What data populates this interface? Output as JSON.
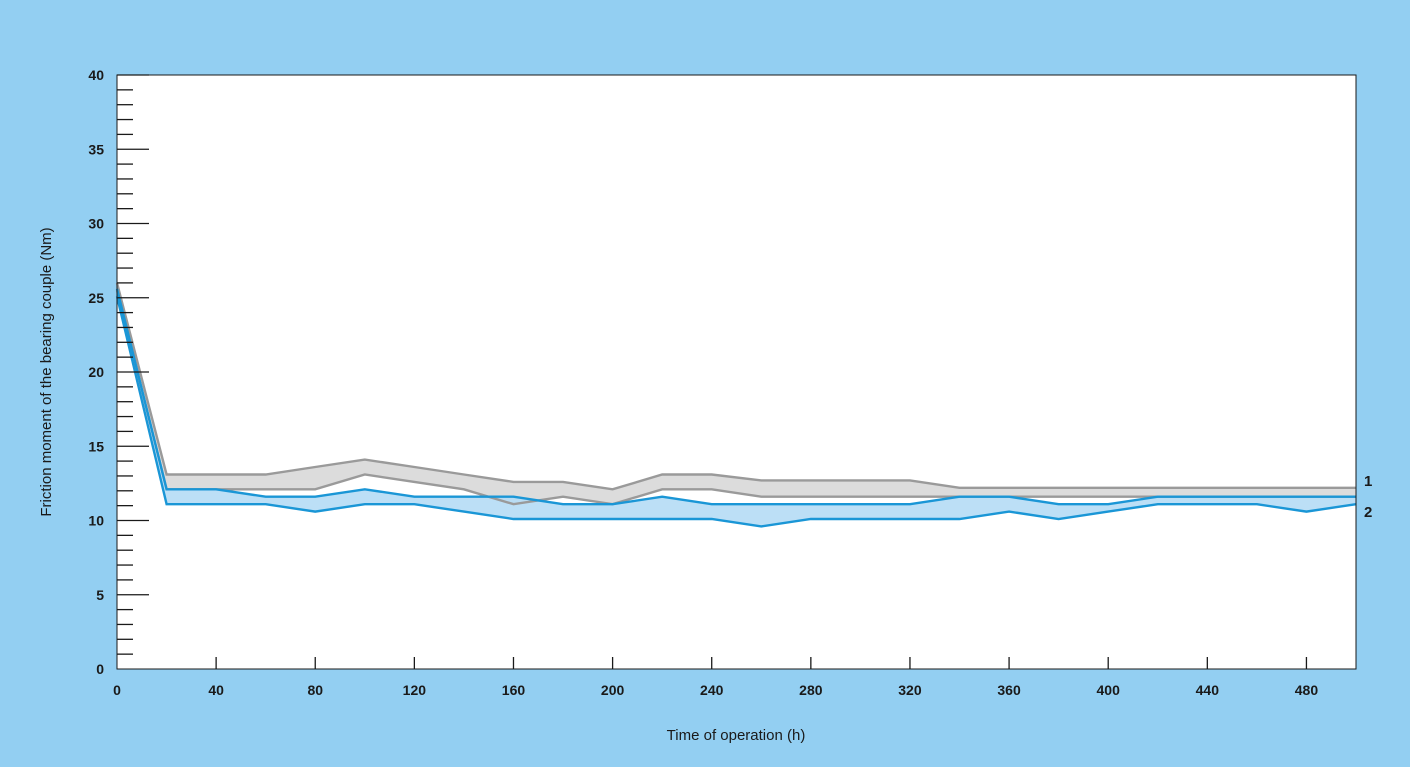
{
  "chart_data": {
    "type": "area",
    "title": "",
    "xlabel": "Time of operation (h)",
    "ylabel": "Friction moment of the bearing couple (Nm)",
    "xlim": [
      0,
      500
    ],
    "ylim": [
      0,
      40
    ],
    "x_ticks": [
      0,
      40,
      80,
      120,
      160,
      200,
      240,
      280,
      320,
      360,
      400,
      440,
      480
    ],
    "y_ticks": [
      0,
      5,
      10,
      15,
      20,
      25,
      30,
      35,
      40
    ],
    "y_minor_step": 1,
    "grid": false,
    "legend": "none",
    "series": [
      {
        "name": "1",
        "color": "#9a9a9a",
        "fill": "#dcdcdc",
        "x": [
          0,
          20,
          40,
          60,
          80,
          100,
          120,
          140,
          160,
          180,
          200,
          220,
          240,
          260,
          280,
          300,
          320,
          340,
          360,
          380,
          400,
          420,
          440,
          460,
          480,
          500
        ],
        "upper": [
          26.0,
          13.1,
          13.1,
          13.1,
          13.6,
          14.1,
          13.6,
          13.1,
          12.6,
          12.6,
          12.1,
          13.1,
          13.1,
          12.7,
          12.7,
          12.7,
          12.7,
          12.2,
          12.2,
          12.2,
          12.2,
          12.2,
          12.2,
          12.2,
          12.2,
          12.2
        ],
        "lower": [
          25.5,
          12.1,
          12.1,
          12.1,
          12.1,
          13.1,
          12.6,
          12.1,
          11.1,
          11.6,
          11.1,
          12.1,
          12.1,
          11.6,
          11.6,
          11.6,
          11.6,
          11.6,
          11.6,
          11.6,
          11.6,
          11.6,
          11.6,
          11.6,
          11.6,
          11.6
        ]
      },
      {
        "name": "2",
        "color": "#1a96d6",
        "fill": "#b5dcf5",
        "x": [
          0,
          20,
          40,
          60,
          80,
          100,
          120,
          140,
          160,
          180,
          200,
          220,
          240,
          260,
          280,
          300,
          320,
          340,
          360,
          380,
          400,
          420,
          440,
          460,
          480,
          500
        ],
        "upper": [
          25.6,
          12.1,
          12.1,
          11.6,
          11.6,
          12.1,
          11.6,
          11.6,
          11.6,
          11.1,
          11.1,
          11.6,
          11.1,
          11.1,
          11.1,
          11.1,
          11.1,
          11.6,
          11.6,
          11.1,
          11.1,
          11.6,
          11.6,
          11.6,
          11.6,
          11.6
        ],
        "lower": [
          25.1,
          11.1,
          11.1,
          11.1,
          10.6,
          11.1,
          11.1,
          10.6,
          10.1,
          10.1,
          10.1,
          10.1,
          10.1,
          9.6,
          10.1,
          10.1,
          10.1,
          10.1,
          10.6,
          10.1,
          10.6,
          11.1,
          11.1,
          11.1,
          10.6,
          11.1
        ]
      }
    ]
  }
}
